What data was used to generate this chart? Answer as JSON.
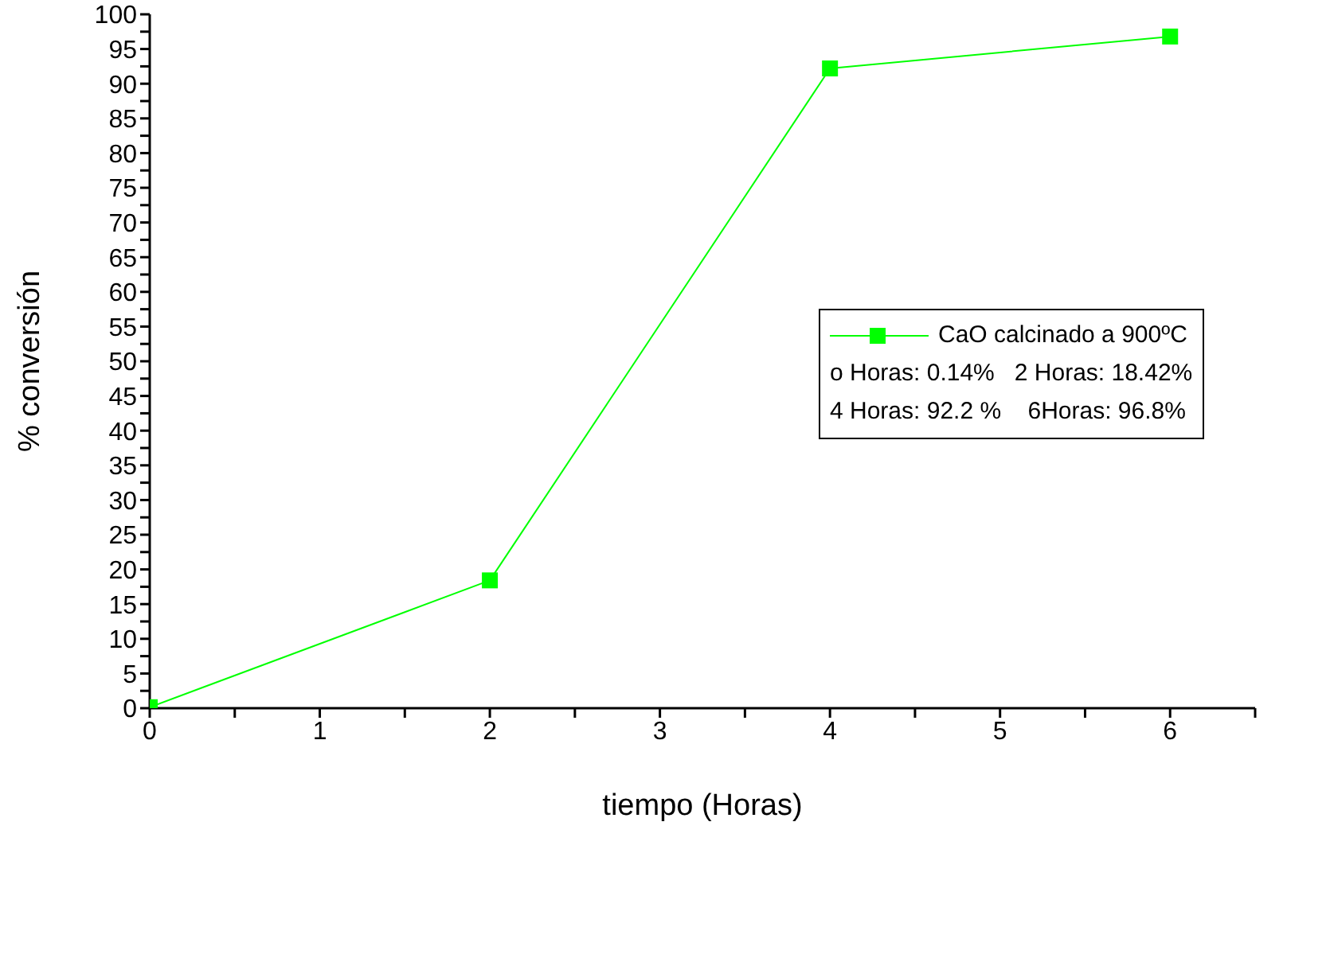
{
  "chart_data": {
    "type": "line",
    "xlabel": "tiempo (Horas)",
    "ylabel": "% conversión",
    "x": [
      0,
      2,
      4,
      6
    ],
    "series": [
      {
        "name": "CaO calcinado a 900ºC",
        "color": "#00ff00",
        "values": [
          0.14,
          18.42,
          92.2,
          96.8
        ]
      }
    ],
    "xlim": [
      0,
      6.5
    ],
    "xticks": [
      0,
      {
        "value": 0.5,
        "label": null
      },
      1,
      {
        "value": 1.5,
        "label": null
      },
      2,
      {
        "value": 2.5,
        "label": null
      },
      3,
      {
        "value": 3.5,
        "label": null
      },
      4,
      {
        "value": 4.5,
        "label": null
      },
      5,
      {
        "value": 5.5,
        "label": null
      },
      6,
      {
        "value": 6.5,
        "label": null
      }
    ],
    "ylim": [
      0,
      100
    ],
    "yticks": [
      0,
      {
        "value": 2.5,
        "label": null
      },
      5,
      {
        "value": 7.5,
        "label": null
      },
      10,
      {
        "value": 12.5,
        "label": null
      },
      15,
      {
        "value": 17.5,
        "label": null
      },
      20,
      {
        "value": 22.5,
        "label": null
      },
      25,
      {
        "value": 27.5,
        "label": null
      },
      30,
      {
        "value": 32.5,
        "label": null
      },
      35,
      {
        "value": 37.5,
        "label": null
      },
      40,
      {
        "value": 42.5,
        "label": null
      },
      45,
      {
        "value": 47.5,
        "label": null
      },
      50,
      {
        "value": 52.5,
        "label": null
      },
      55,
      {
        "value": 57.5,
        "label": null
      },
      60,
      {
        "value": 62.5,
        "label": null
      },
      65,
      {
        "value": 67.5,
        "label": null
      },
      70,
      {
        "value": 72.5,
        "label": null
      },
      75,
      {
        "value": 77.5,
        "label": null
      },
      80,
      {
        "value": 82.5,
        "label": null
      },
      85,
      {
        "value": 87.5,
        "label": null
      },
      90,
      {
        "value": 92.5,
        "label": null
      },
      95,
      {
        "value": 97.5,
        "label": null
      },
      100
    ],
    "annotations": [
      "o Horas: 0.14%   2 Horas: 18.42%",
      "4 Horas: 92.2 %    6Horas: 96.8%"
    ],
    "marker": "square",
    "line_style": "solid",
    "grid": false,
    "legend": "right"
  }
}
